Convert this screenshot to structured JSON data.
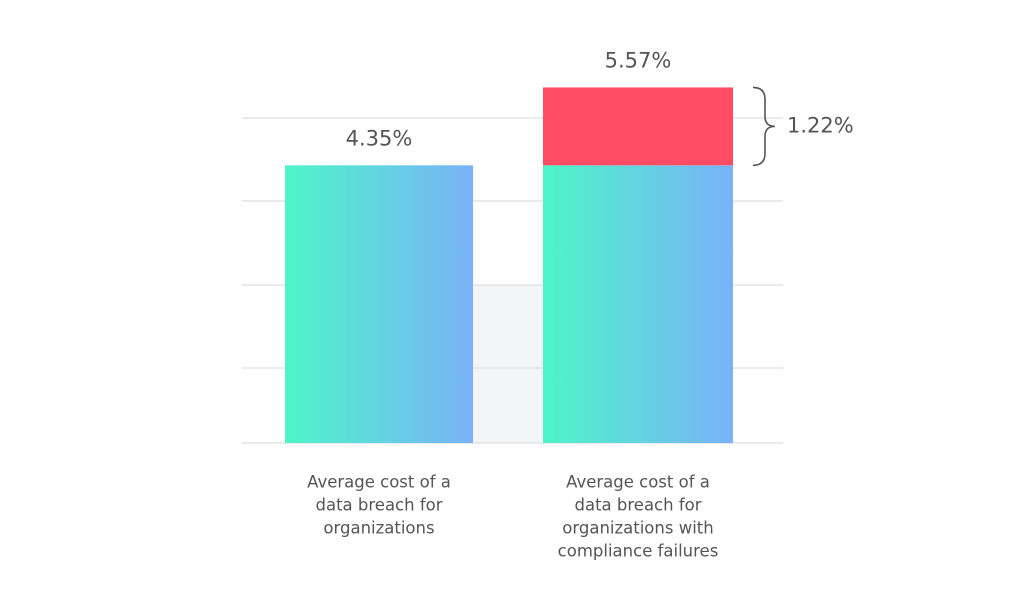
{
  "chart_data": {
    "type": "stacked_bar",
    "categories": [
      [
        "Average cost of a",
        "data breach for",
        "organizations"
      ],
      [
        "Average cost of a",
        "data breach for",
        "organizations with",
        "compliance failures"
      ]
    ],
    "series": [
      {
        "color": [
          "#4ef5c8",
          "#79b2f8"
        ],
        "values": [
          4.35,
          4.35
        ]
      },
      {
        "color": "#ff4b63",
        "values": [
          null,
          1.22
        ],
        "value_labels": [
          null,
          "1.22%"
        ]
      }
    ],
    "totals": [
      4.35,
      5.57
    ],
    "total_labels": [
      "4.35%",
      "5.57%"
    ],
    "ylim": [
      0,
      6
    ]
  }
}
